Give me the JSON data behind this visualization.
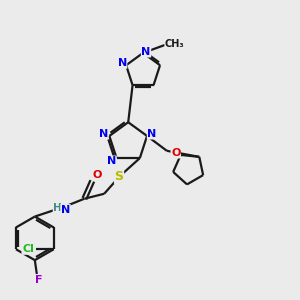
{
  "bg_color": "#ebebeb",
  "bond_color": "#1a1a1a",
  "atom_colors": {
    "N": "#0000ee",
    "O": "#dd0000",
    "S": "#bbbb00",
    "Cl": "#22bb22",
    "F": "#9900cc",
    "H": "#448888"
  },
  "figsize": [
    3.0,
    3.0
  ],
  "dpi": 100
}
